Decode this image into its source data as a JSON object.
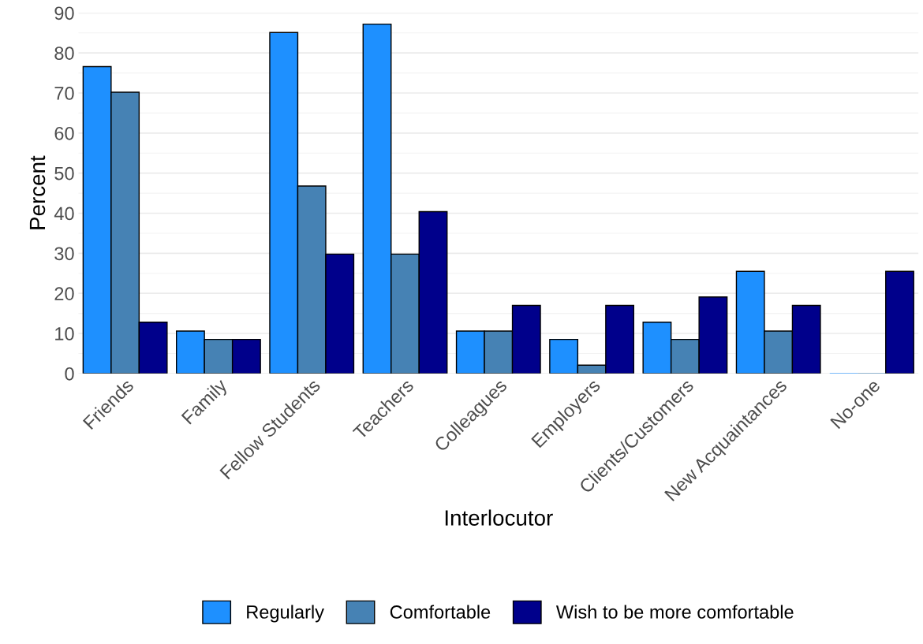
{
  "chart_data": {
    "type": "bar",
    "xlabel": "Interlocutor",
    "ylabel": "Percent",
    "categories": [
      "Friends",
      "Family",
      "Fellow Students",
      "Teachers",
      "Colleagues",
      "Employers",
      "Clients/Customers",
      "New Acquaintances",
      "No-one"
    ],
    "series": [
      {
        "name": "Regularly",
        "color": "#1e90ff",
        "values": [
          76.6,
          10.6,
          85.1,
          87.2,
          10.6,
          8.5,
          12.8,
          25.5,
          0
        ]
      },
      {
        "name": "Comfortable",
        "color": "#4682b4",
        "values": [
          70.2,
          8.5,
          46.8,
          29.8,
          10.6,
          2.1,
          8.5,
          10.6,
          0
        ]
      },
      {
        "name": "Wish to be more comfortable",
        "color": "#00008b",
        "values": [
          12.8,
          8.5,
          29.8,
          40.4,
          17.0,
          17.0,
          19.1,
          17.0,
          25.5
        ]
      }
    ],
    "ylim": [
      0,
      90
    ],
    "yticks": [
      0,
      10,
      20,
      30,
      40,
      50,
      60,
      70,
      80,
      90
    ],
    "grid": "y",
    "legend": "bottom"
  }
}
